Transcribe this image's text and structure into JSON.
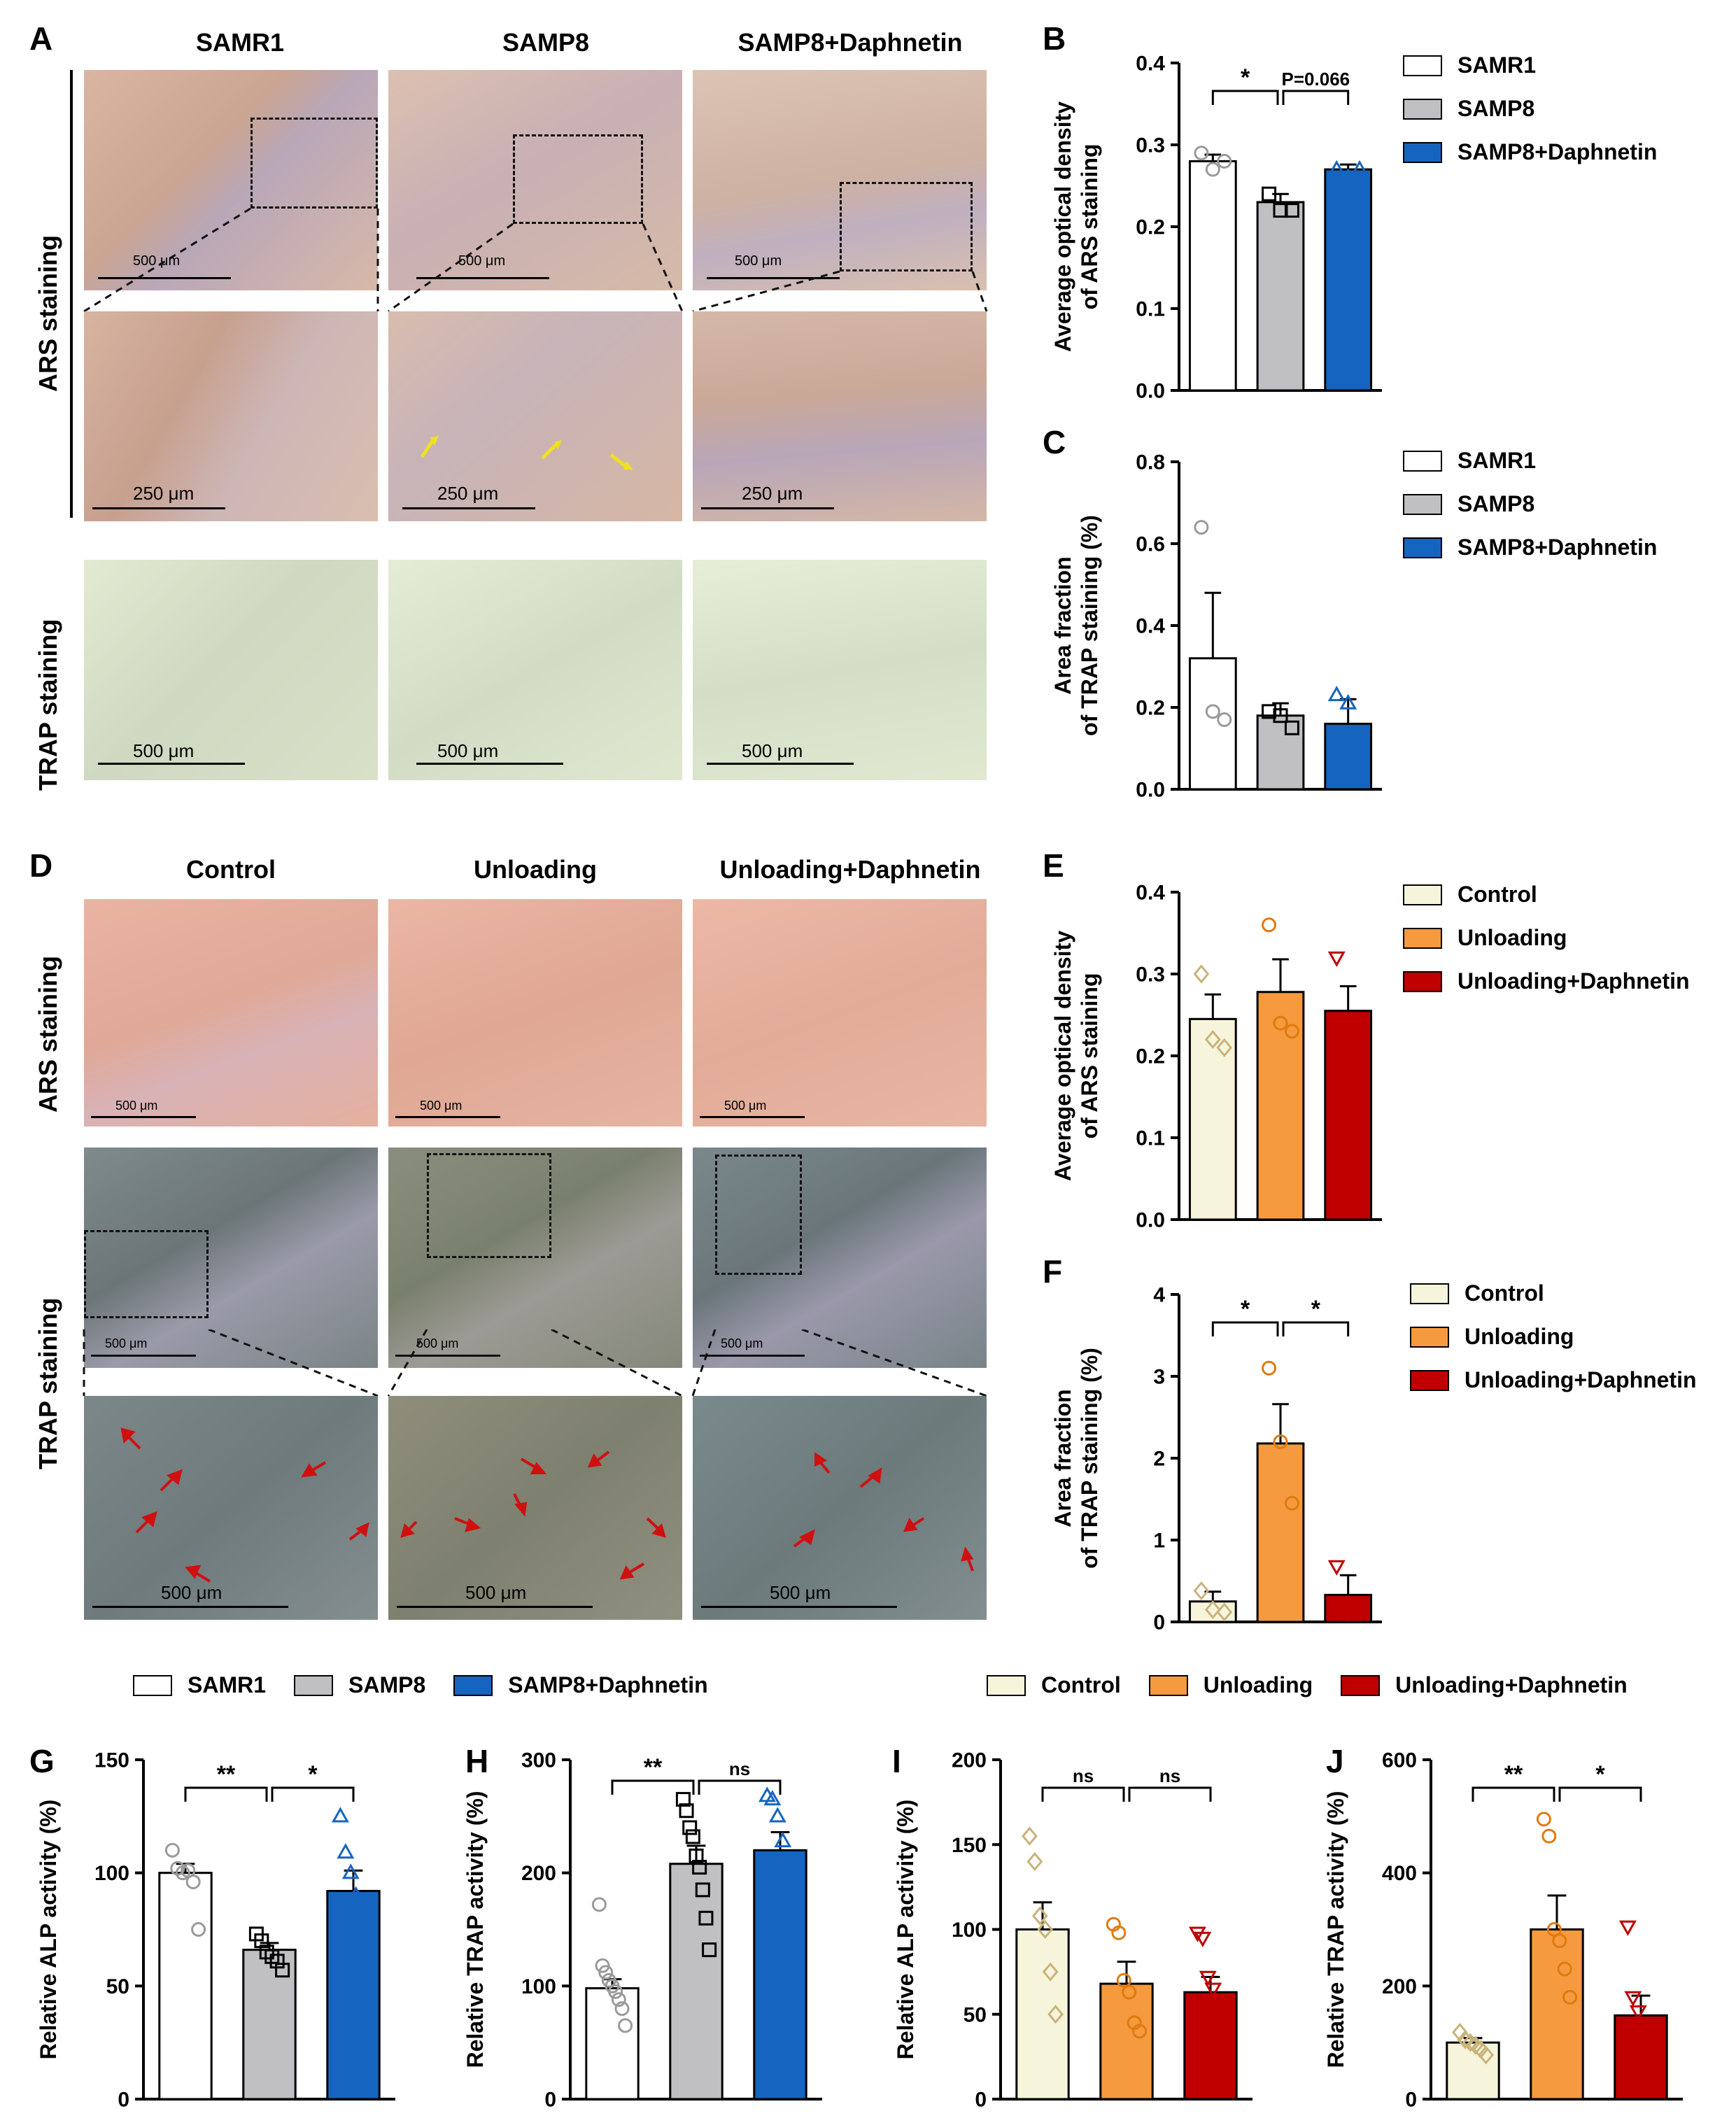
{
  "panels": {
    "A": {
      "letter": "A",
      "columns": [
        "SAMR1",
        "SAMP8",
        "SAMP8+Daphnetin"
      ],
      "rows": [
        "ARS staining",
        "TRAP staining"
      ],
      "scale_overview": "500 μm",
      "scale_zoom": "250 μm"
    },
    "D": {
      "letter": "D",
      "columns": [
        "Control",
        "Unloading",
        "Unloading+Daphnetin"
      ],
      "rows": [
        "ARS staining",
        "TRAP staining"
      ],
      "scale": "500 μm"
    }
  },
  "legends": {
    "samp": [
      {
        "label": "SAMR1",
        "color": "#ffffff"
      },
      {
        "label": "SAMP8",
        "color": "#c0c0c3"
      },
      {
        "label": "SAMP8+Daphnetin",
        "color": "#1565c0"
      }
    ],
    "unload": [
      {
        "label": "Control",
        "color": "#f6f5dc"
      },
      {
        "label": "Unloading",
        "color": "#f59a3e"
      },
      {
        "label": "Unloading+Daphnetin",
        "color": "#c00000"
      }
    ]
  },
  "chart_data": [
    {
      "id": "B",
      "type": "bar",
      "title": "",
      "ylabel": [
        "Average optical density",
        "of ARS staining"
      ],
      "categories": [
        "SAMR1",
        "SAMP8",
        "SAMP8+Daphnetin"
      ],
      "values": [
        0.28,
        0.23,
        0.27
      ],
      "errors": [
        0.008,
        0.01,
        0.006
      ],
      "points": [
        [
          0.29,
          0.27,
          0.28
        ],
        [
          0.24,
          0.22,
          0.22
        ],
        [
          0.27,
          0.26,
          0.27
        ]
      ],
      "markers": [
        "circle",
        "square",
        "triangle"
      ],
      "ylim": [
        0,
        0.4
      ],
      "yticks": [
        "0.0",
        "0.1",
        "0.2",
        "0.3",
        "0.4"
      ],
      "colors": [
        "#ffffff",
        "#c0c0c3",
        "#1565c0"
      ],
      "marker_colors": [
        "#9a9a9a",
        "#000000",
        "#1565c0"
      ],
      "brackets": [
        {
          "from": 0,
          "to": 1,
          "label": "*"
        },
        {
          "from": 1,
          "to": 2,
          "label": "P=0.066"
        }
      ]
    },
    {
      "id": "C",
      "type": "bar",
      "title": "",
      "ylabel": [
        "Area fraction",
        "of TRAP staining (%)"
      ],
      "categories": [
        "SAMR1",
        "SAMP8",
        "SAMP8+Daphnetin"
      ],
      "values": [
        0.32,
        0.18,
        0.16
      ],
      "errors": [
        0.16,
        0.03,
        0.06
      ],
      "points": [
        [
          0.64,
          0.19,
          0.17
        ],
        [
          0.19,
          0.18,
          0.15
        ],
        [
          0.23,
          0.21,
          0.05
        ]
      ],
      "markers": [
        "circle",
        "square",
        "triangle"
      ],
      "ylim": [
        0,
        0.8
      ],
      "yticks": [
        "0.0",
        "0.2",
        "0.4",
        "0.6",
        "0.8"
      ],
      "colors": [
        "#ffffff",
        "#c0c0c3",
        "#1565c0"
      ],
      "marker_colors": [
        "#9a9a9a",
        "#000000",
        "#1565c0"
      ],
      "brackets": []
    },
    {
      "id": "E",
      "type": "bar",
      "title": "",
      "ylabel": [
        "Average optical density",
        "of ARS staining"
      ],
      "categories": [
        "Control",
        "Unloading",
        "Unloading+Daphnetin"
      ],
      "values": [
        0.245,
        0.278,
        0.255
      ],
      "errors": [
        0.03,
        0.04,
        0.03
      ],
      "points": [
        [
          0.3,
          0.22,
          0.21
        ],
        [
          0.36,
          0.24,
          0.23
        ],
        [
          0.32,
          0.23,
          0.24
        ]
      ],
      "markers": [
        "diamond",
        "circle",
        "invtriangle"
      ],
      "ylim": [
        0,
        0.4
      ],
      "yticks": [
        "0.0",
        "0.1",
        "0.2",
        "0.3",
        "0.4"
      ],
      "colors": [
        "#f6f5dc",
        "#f59a3e",
        "#c00000"
      ],
      "marker_colors": [
        "#c9b37a",
        "#e07a10",
        "#c00000"
      ],
      "brackets": []
    },
    {
      "id": "F",
      "type": "bar",
      "title": "",
      "ylabel": [
        "Area fraction",
        "of TRAP staining (%)"
      ],
      "categories": [
        "Control",
        "Unloading",
        "Unloading+Daphnetin"
      ],
      "values": [
        0.25,
        2.18,
        0.33
      ],
      "errors": [
        0.12,
        0.48,
        0.24
      ],
      "points": [
        [
          0.38,
          0.15,
          0.12
        ],
        [
          3.1,
          2.2,
          1.45
        ],
        [
          0.68,
          0.12,
          0.12
        ]
      ],
      "markers": [
        "diamond",
        "circle",
        "invtriangle"
      ],
      "ylim": [
        0,
        4
      ],
      "yticks": [
        "0",
        "1",
        "2",
        "3",
        "4"
      ],
      "colors": [
        "#f6f5dc",
        "#f59a3e",
        "#c00000"
      ],
      "marker_colors": [
        "#c9b37a",
        "#e07a10",
        "#c00000"
      ],
      "brackets": [
        {
          "from": 0,
          "to": 1,
          "label": "*"
        },
        {
          "from": 1,
          "to": 2,
          "label": "*"
        }
      ]
    },
    {
      "id": "G",
      "type": "bar",
      "title": "",
      "ylabel": [
        "Relative ALP activity (%)"
      ],
      "categories": [
        "SAMR1",
        "SAMP8",
        "SAMP8+Daphnetin"
      ],
      "values": [
        100,
        66,
        92
      ],
      "errors": [
        4,
        3,
        9
      ],
      "points": [
        [
          110,
          102,
          100,
          101,
          96,
          75
        ],
        [
          73,
          70,
          65,
          63,
          61,
          57
        ],
        [
          125,
          109,
          100,
          90,
          77,
          65
        ]
      ],
      "markers": [
        "circle",
        "square",
        "triangle"
      ],
      "ylim": [
        0,
        150
      ],
      "yticks": [
        "0",
        "50",
        "100",
        "150"
      ],
      "colors": [
        "#ffffff",
        "#c0c0c3",
        "#1565c0"
      ],
      "marker_colors": [
        "#9a9a9a",
        "#000000",
        "#1565c0"
      ],
      "brackets": [
        {
          "from": 0,
          "to": 1,
          "label": "**"
        },
        {
          "from": 1,
          "to": 2,
          "label": "*"
        }
      ]
    },
    {
      "id": "H",
      "type": "bar",
      "title": "",
      "ylabel": [
        "Relative TRAP activity (%)"
      ],
      "categories": [
        "SAMR1",
        "SAMP8",
        "SAMP8+Daphnetin"
      ],
      "values": [
        98,
        208,
        220
      ],
      "errors": [
        8,
        16,
        16
      ],
      "points": [
        [
          172,
          118,
          112,
          105,
          100,
          95,
          88,
          80,
          65
        ],
        [
          265,
          255,
          240,
          232,
          215,
          205,
          185,
          160,
          132
        ],
        [
          268,
          265,
          250,
          228,
          200,
          178
        ]
      ],
      "markers": [
        "circle",
        "square",
        "triangle"
      ],
      "ylim": [
        0,
        300
      ],
      "yticks": [
        "0",
        "100",
        "200",
        "300"
      ],
      "colors": [
        "#ffffff",
        "#c0c0c3",
        "#1565c0"
      ],
      "marker_colors": [
        "#9a9a9a",
        "#000000",
        "#1565c0"
      ],
      "brackets": [
        {
          "from": 0,
          "to": 1,
          "label": "**"
        },
        {
          "from": 1,
          "to": 2,
          "label": "ns"
        }
      ]
    },
    {
      "id": "I",
      "type": "bar",
      "title": "",
      "ylabel": [
        "Relative ALP activity (%)"
      ],
      "categories": [
        "Control",
        "Unloading",
        "Unloading+Daphnetin"
      ],
      "values": [
        100,
        68,
        63
      ],
      "errors": [
        16,
        13,
        9
      ],
      "points": [
        [
          155,
          140,
          108,
          100,
          75,
          50
        ],
        [
          103,
          98,
          70,
          63,
          45,
          40
        ],
        [
          98,
          95,
          72,
          65,
          55,
          43
        ]
      ],
      "markers": [
        "diamond",
        "circle",
        "invtriangle"
      ],
      "ylim": [
        0,
        200
      ],
      "yticks": [
        "0",
        "50",
        "100",
        "150",
        "200"
      ],
      "colors": [
        "#f6f5dc",
        "#f59a3e",
        "#c00000"
      ],
      "marker_colors": [
        "#c9b37a",
        "#e07a10",
        "#c00000"
      ],
      "brackets": [
        {
          "from": 0,
          "to": 1,
          "label": "ns"
        },
        {
          "from": 1,
          "to": 2,
          "label": "ns"
        }
      ]
    },
    {
      "id": "J",
      "type": "bar",
      "title": "",
      "ylabel": [
        "Relative TRAP activity (%)"
      ],
      "categories": [
        "Control",
        "Unloading",
        "Unloading+Daphnetin"
      ],
      "values": [
        100,
        300,
        148
      ],
      "errors": [
        8,
        60,
        35
      ],
      "points": [
        [
          118,
          105,
          100,
          95,
          88,
          78
        ],
        [
          495,
          465,
          300,
          280,
          230,
          180
        ],
        [
          305,
          180,
          155,
          125,
          85,
          65
        ]
      ],
      "markers": [
        "diamond",
        "circle",
        "invtriangle"
      ],
      "ylim": [
        0,
        600
      ],
      "yticks": [
        "0",
        "200",
        "400",
        "600"
      ],
      "colors": [
        "#f6f5dc",
        "#f59a3e",
        "#c00000"
      ],
      "marker_colors": [
        "#c9b37a",
        "#e07a10",
        "#c00000"
      ],
      "brackets": [
        {
          "from": 0,
          "to": 1,
          "label": "**"
        },
        {
          "from": 1,
          "to": 2,
          "label": "*"
        }
      ]
    }
  ]
}
